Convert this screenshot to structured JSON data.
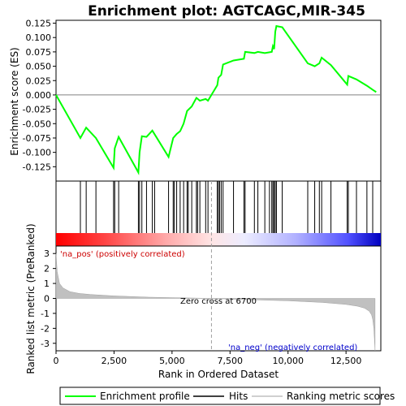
{
  "chart_data": {
    "type": "line",
    "title": "Enrichment plot: AGTCAGC,MIR-345",
    "top_panel": {
      "ylabel": "Enrichment score (ES)",
      "ylim": [
        -0.15,
        0.13
      ],
      "yticks": [
        0.125,
        0.1,
        0.075,
        0.05,
        0.025,
        0.0,
        -0.025,
        -0.05,
        -0.075,
        -0.1,
        -0.125
      ],
      "ytick_labels": [
        "0.125",
        "0.100",
        "0.075",
        "0.050",
        "0.025",
        "0.000",
        "-0.025",
        "-0.050",
        "-0.075",
        "-0.100",
        "-0.125"
      ],
      "series": {
        "name": "Enrichment profile",
        "color": "#00ff00",
        "x": [
          0,
          1050,
          1300,
          1720,
          2480,
          2530,
          2700,
          3550,
          3600,
          3700,
          3900,
          4150,
          4850,
          5050,
          5200,
          5350,
          5500,
          5650,
          5850,
          6050,
          6200,
          6450,
          6550,
          6950,
          7000,
          7120,
          7200,
          7650,
          8100,
          8150,
          8550,
          8700,
          9000,
          9300,
          9350,
          9400,
          9450,
          9500,
          9750,
          10850,
          11150,
          11350,
          11450,
          11850,
          12550,
          12600,
          12950,
          13400,
          13650,
          13800
        ],
        "y": [
          0.0,
          -0.075,
          -0.057,
          -0.075,
          -0.127,
          -0.093,
          -0.073,
          -0.135,
          -0.1,
          -0.072,
          -0.073,
          -0.062,
          -0.108,
          -0.075,
          -0.068,
          -0.063,
          -0.05,
          -0.028,
          -0.02,
          -0.005,
          -0.01,
          -0.007,
          -0.01,
          0.017,
          0.03,
          0.035,
          0.053,
          0.06,
          0.063,
          0.075,
          0.073,
          0.075,
          0.073,
          0.075,
          0.085,
          0.08,
          0.11,
          0.12,
          0.118,
          0.055,
          0.05,
          0.055,
          0.065,
          0.052,
          0.018,
          0.033,
          0.027,
          0.016,
          0.009,
          0.005
        ]
      }
    },
    "hits": {
      "name": "Hits",
      "x": [
        1050,
        1300,
        1720,
        2480,
        2530,
        2700,
        3550,
        3600,
        3700,
        3900,
        4150,
        4250,
        4850,
        5050,
        5100,
        5200,
        5350,
        5500,
        5650,
        5700,
        5850,
        6050,
        6100,
        6200,
        6450,
        6550,
        6950,
        7000,
        7050,
        7120,
        7200,
        7650,
        8100,
        8150,
        8550,
        8700,
        9000,
        9200,
        9300,
        9350,
        9400,
        9450,
        9500,
        9750,
        10850,
        11150,
        11350,
        11450,
        11850,
        12550,
        12600,
        12950,
        13400,
        13650
      ]
    },
    "ranked_metric": {
      "name": "Ranking metric scores",
      "ylabel": "Ranked list metric (PreRanked)",
      "xlabel": "Rank in Ordered Dataset",
      "ylim": [
        -3.5,
        3.5
      ],
      "yticks": [
        3,
        2,
        1,
        0,
        -1,
        -2,
        -3
      ],
      "ytick_labels": [
        "3",
        "2",
        "1",
        "0",
        "-1",
        "-2",
        "-3"
      ],
      "xlim": [
        0,
        14000
      ],
      "xticks": [
        0,
        2500,
        5000,
        7500,
        10000,
        12500
      ],
      "xtick_labels": [
        "0",
        "2,500",
        "5,000",
        "7,500",
        "10,000",
        "12,500"
      ],
      "x": [
        0,
        50,
        150,
        300,
        600,
        1000,
        1500,
        2500,
        4000,
        6000,
        6700,
        8000,
        10000,
        11500,
        12500,
        13000,
        13300,
        13500,
        13600,
        13650,
        13700,
        13750
      ],
      "y": [
        3.0,
        1.8,
        1.0,
        0.7,
        0.45,
        0.33,
        0.26,
        0.17,
        0.08,
        0.02,
        0.0,
        -0.07,
        -0.16,
        -0.27,
        -0.4,
        -0.52,
        -0.65,
        -0.85,
        -1.1,
        -1.4,
        -2.0,
        -3.5
      ],
      "zero_cross": 6700,
      "annotations": {
        "zero_cross_label": "Zero cross at 6700",
        "pos_label": "'na_pos' (positively correlated)",
        "neg_label": "'na_neg' (negatively correlated)"
      }
    },
    "legend": {
      "placement": "bottom",
      "entries": [
        "Enrichment profile",
        "Hits",
        "Ranking metric scores"
      ]
    },
    "colors": {
      "profile": "#00ff00",
      "pos_color": "#ff0000",
      "neg_color": "#0000ff",
      "metric_fill": "#c0c0c0"
    }
  }
}
